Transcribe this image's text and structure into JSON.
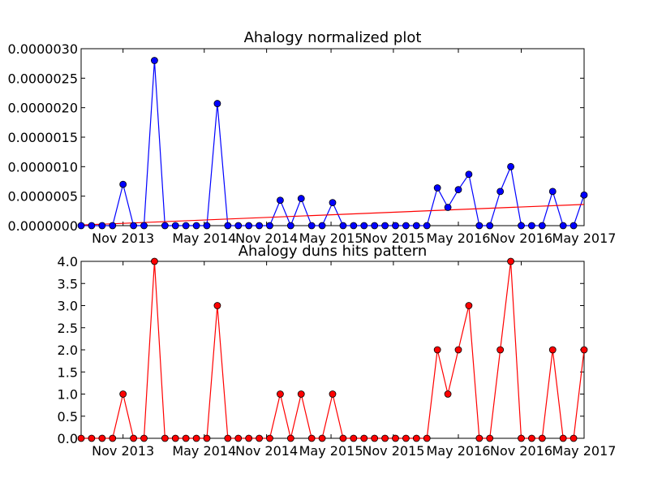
{
  "chart_data": [
    {
      "type": "line",
      "title": "Ahalogy normalized plot",
      "xlabel": "",
      "ylabel": "",
      "ylim": [
        0,
        3e-06
      ],
      "yticks": [
        "0.0000000",
        "0.0000005",
        "0.0000010",
        "0.0000015",
        "0.0000020",
        "0.0000025",
        "0.0000030"
      ],
      "xticks": [
        "Nov 2013",
        "May 2014",
        "Nov 2014",
        "May 2015",
        "Nov 2015",
        "May 2016",
        "Nov 2016",
        "May 2017"
      ],
      "series": [
        {
          "color": "#0000ff",
          "marker": "circle",
          "values": [
            0,
            0,
            0,
            0,
            7e-07,
            0,
            0,
            2.8e-06,
            0,
            0,
            0,
            0,
            0,
            2.07e-06,
            0,
            0,
            0,
            0,
            0,
            4.3e-07,
            0,
            4.6e-07,
            0,
            0,
            3.9e-07,
            0,
            0,
            0,
            0,
            0,
            0,
            0,
            0,
            0,
            6.4e-07,
            3.1e-07,
            6.1e-07,
            8.7e-07,
            0,
            0,
            5.8e-07,
            1e-06,
            0,
            0,
            0,
            5.8e-07,
            0,
            0,
            5.2e-07
          ]
        }
      ],
      "trendline": {
        "color": "#ff0000",
        "start": 1e-08,
        "end": 3.6e-07
      }
    },
    {
      "type": "line",
      "title": "Ahalogy duns hits pattern",
      "xlabel": "",
      "ylabel": "",
      "ylim": [
        0,
        4
      ],
      "yticks": [
        "0.0",
        "0.5",
        "1.0",
        "1.5",
        "2.0",
        "2.5",
        "3.0",
        "3.5",
        "4.0"
      ],
      "xticks": [
        "Nov 2013",
        "May 2014",
        "Nov 2014",
        "May 2015",
        "Nov 2015",
        "May 2016",
        "Nov 2016",
        "May 2017"
      ],
      "series": [
        {
          "color": "#ff0000",
          "marker": "circle",
          "values": [
            0,
            0,
            0,
            0,
            1,
            0,
            0,
            4,
            0,
            0,
            0,
            0,
            0,
            3,
            0,
            0,
            0,
            0,
            0,
            1,
            0,
            1,
            0,
            0,
            1,
            0,
            0,
            0,
            0,
            0,
            0,
            0,
            0,
            0,
            2,
            1,
            2,
            3,
            0,
            0,
            2,
            4,
            0,
            0,
            0,
            2,
            0,
            0,
            2
          ]
        }
      ]
    }
  ]
}
